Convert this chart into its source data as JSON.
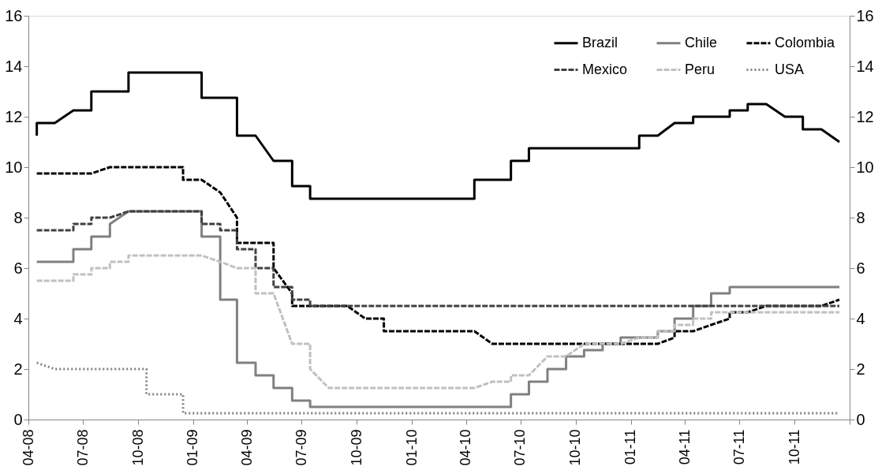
{
  "chart_data": {
    "type": "line",
    "xlim": [
      "2008-04-01",
      "2012-01-01"
    ],
    "xticks": [
      {
        "value": "2008-04-01",
        "label": "04-08"
      },
      {
        "value": "2008-07-01",
        "label": "07-08"
      },
      {
        "value": "2008-10-01",
        "label": "10-08"
      },
      {
        "value": "2009-01-01",
        "label": "01-09"
      },
      {
        "value": "2009-04-01",
        "label": "04-09"
      },
      {
        "value": "2009-07-01",
        "label": "07-09"
      },
      {
        "value": "2009-10-01",
        "label": "10-09"
      },
      {
        "value": "2010-01-01",
        "label": "01-10"
      },
      {
        "value": "2010-04-01",
        "label": "04-10"
      },
      {
        "value": "2010-07-01",
        "label": "07-10"
      },
      {
        "value": "2010-10-01",
        "label": "10-10"
      },
      {
        "value": "2011-01-01",
        "label": "01-11"
      },
      {
        "value": "2011-04-01",
        "label": "04-11"
      },
      {
        "value": "2011-07-01",
        "label": "07-11"
      },
      {
        "value": "2011-10-01",
        "label": "10-11"
      },
      {
        "value": "2012-01-01",
        "label": null
      }
    ],
    "ylim": [
      0,
      16
    ],
    "yticks": [
      0,
      2,
      4,
      6,
      8,
      10,
      12,
      14,
      16
    ],
    "y2lim": [
      0,
      16
    ],
    "y2ticks": [
      0,
      2,
      4,
      6,
      8,
      10,
      12,
      14,
      16
    ],
    "grid": false,
    "legend": "top right",
    "series": [
      {
        "name": "Brazil",
        "color": "#000000",
        "line_style": "solid",
        "x": [
          "2008-04-15",
          "2008-04-15",
          "2008-05-15",
          "2008-06-15",
          "2008-07-15",
          "2008-07-15",
          "2008-09-15",
          "2008-09-15",
          "2009-01-15",
          "2009-01-15",
          "2009-03-15",
          "2009-03-15",
          "2009-04-15",
          "2009-05-15",
          "2009-06-15",
          "2009-06-15",
          "2009-07-15",
          "2009-07-15",
          "2010-04-15",
          "2010-04-15",
          "2010-06-15",
          "2010-06-15",
          "2010-07-15",
          "2010-07-15",
          "2011-01-15",
          "2011-01-15",
          "2011-02-15",
          "2011-03-15",
          "2011-04-15",
          "2011-04-15",
          "2011-06-15",
          "2011-06-15",
          "2011-07-15",
          "2011-07-15",
          "2011-08-15",
          "2011-09-15",
          "2011-10-15",
          "2011-10-15",
          "2011-11-15",
          "2011-12-15"
        ],
        "values": [
          11.25,
          11.75,
          11.75,
          12.25,
          12.25,
          13.0,
          13.0,
          13.75,
          13.75,
          12.75,
          12.75,
          11.25,
          11.25,
          10.25,
          10.25,
          9.25,
          9.25,
          8.75,
          8.75,
          9.5,
          9.5,
          10.25,
          10.25,
          10.75,
          10.75,
          11.25,
          11.25,
          11.75,
          11.75,
          12.0,
          12.0,
          12.25,
          12.25,
          12.5,
          12.5,
          12.0,
          12.0,
          11.5,
          11.5,
          11.0
        ]
      },
      {
        "name": "Chile",
        "color": "#808080",
        "line_style": "solid",
        "x": [
          "2008-04-15",
          "2008-06-15",
          "2008-06-15",
          "2008-07-15",
          "2008-07-15",
          "2008-08-15",
          "2008-08-15",
          "2008-09-15",
          "2009-01-15",
          "2009-01-15",
          "2009-02-15",
          "2009-02-15",
          "2009-03-15",
          "2009-03-15",
          "2009-04-15",
          "2009-04-15",
          "2009-05-15",
          "2009-05-15",
          "2009-06-15",
          "2009-06-15",
          "2009-07-15",
          "2009-07-15",
          "2010-06-15",
          "2010-06-15",
          "2010-07-15",
          "2010-07-15",
          "2010-08-15",
          "2010-08-15",
          "2010-09-15",
          "2010-09-15",
          "2010-10-15",
          "2010-10-15",
          "2010-11-15",
          "2010-11-15",
          "2010-12-15",
          "2010-12-15",
          "2011-02-15",
          "2011-02-15",
          "2011-03-15",
          "2011-03-15",
          "2011-04-15",
          "2011-04-15",
          "2011-05-15",
          "2011-05-15",
          "2011-06-15",
          "2011-06-15",
          "2011-12-15"
        ],
        "values": [
          6.25,
          6.25,
          6.75,
          6.75,
          7.25,
          7.25,
          7.75,
          8.25,
          8.25,
          7.25,
          7.25,
          4.75,
          4.75,
          2.25,
          2.25,
          1.75,
          1.75,
          1.25,
          1.25,
          0.75,
          0.75,
          0.5,
          0.5,
          1.0,
          1.0,
          1.5,
          1.5,
          2.0,
          2.0,
          2.5,
          2.5,
          2.75,
          2.75,
          3.0,
          3.0,
          3.25,
          3.25,
          3.5,
          3.5,
          4.0,
          4.0,
          4.5,
          4.5,
          5.0,
          5.0,
          5.25,
          5.25
        ]
      },
      {
        "name": "Colombia",
        "color": "#000000",
        "line_style": "dashed",
        "x": [
          "2008-04-15",
          "2008-07-15",
          "2008-08-15",
          "2008-12-15",
          "2008-12-15",
          "2009-01-15",
          "2009-02-15",
          "2009-03-15",
          "2009-03-15",
          "2009-05-15",
          "2009-05-15",
          "2009-06-15",
          "2009-06-15",
          "2009-09-15",
          "2009-10-15",
          "2009-11-15",
          "2009-11-15",
          "2010-04-15",
          "2010-05-15",
          "2011-02-15",
          "2011-03-15",
          "2011-03-15",
          "2011-04-15",
          "2011-05-15",
          "2011-06-15",
          "2011-06-15",
          "2011-07-15",
          "2011-08-15",
          "2011-11-15",
          "2011-12-15"
        ],
        "values": [
          9.75,
          9.75,
          10.0,
          10.0,
          9.5,
          9.5,
          9.0,
          8.0,
          7.0,
          7.0,
          6.0,
          5.0,
          4.5,
          4.5,
          4.0,
          4.0,
          3.5,
          3.5,
          3.0,
          3.0,
          3.25,
          3.5,
          3.5,
          3.75,
          4.0,
          4.25,
          4.25,
          4.5,
          4.5,
          4.75
        ]
      },
      {
        "name": "Mexico",
        "color": "#404040",
        "line_style": "dashed",
        "x": [
          "2008-04-15",
          "2008-06-15",
          "2008-06-15",
          "2008-07-15",
          "2008-07-15",
          "2008-08-15",
          "2008-09-15",
          "2009-01-15",
          "2009-01-15",
          "2009-02-15",
          "2009-02-15",
          "2009-03-15",
          "2009-03-15",
          "2009-04-15",
          "2009-04-15",
          "2009-05-15",
          "2009-05-15",
          "2009-06-15",
          "2009-06-15",
          "2009-07-15",
          "2009-07-15",
          "2011-12-15"
        ],
        "values": [
          7.5,
          7.5,
          7.75,
          7.75,
          8.0,
          8.0,
          8.25,
          8.25,
          7.75,
          7.75,
          7.5,
          7.5,
          6.75,
          6.75,
          6.0,
          6.0,
          5.25,
          5.25,
          4.75,
          4.75,
          4.5,
          4.5
        ]
      },
      {
        "name": "Peru",
        "color": "#c0c0c0",
        "line_style": "dashed",
        "x": [
          "2008-04-15",
          "2008-06-15",
          "2008-06-15",
          "2008-07-15",
          "2008-07-15",
          "2008-08-15",
          "2008-08-15",
          "2008-09-15",
          "2008-09-15",
          "2009-01-15",
          "2009-02-15",
          "2009-03-15",
          "2009-04-15",
          "2009-04-15",
          "2009-05-15",
          "2009-06-15",
          "2009-07-15",
          "2009-07-15",
          "2009-08-15",
          "2010-04-15",
          "2010-05-15",
          "2010-06-15",
          "2010-06-15",
          "2010-07-15",
          "2010-08-15",
          "2010-09-15",
          "2010-10-15",
          "2010-12-15",
          "2011-01-15",
          "2011-02-15",
          "2011-02-15",
          "2011-03-15",
          "2011-03-15",
          "2011-04-15",
          "2011-04-15",
          "2011-05-15",
          "2011-05-15",
          "2011-12-15"
        ],
        "values": [
          5.5,
          5.5,
          5.75,
          5.75,
          6.0,
          6.0,
          6.25,
          6.25,
          6.5,
          6.5,
          6.25,
          6.0,
          6.0,
          5.0,
          5.0,
          3.0,
          3.0,
          2.0,
          1.25,
          1.25,
          1.5,
          1.5,
          1.75,
          1.75,
          2.5,
          2.5,
          3.0,
          3.0,
          3.25,
          3.25,
          3.5,
          3.5,
          3.75,
          3.75,
          4.0,
          4.0,
          4.25,
          4.25
        ]
      },
      {
        "name": "USA",
        "color": "#808080",
        "line_style": "dotted",
        "x": [
          "2008-04-15",
          "2008-05-15",
          "2008-10-15",
          "2008-10-15",
          "2008-12-15",
          "2008-12-15",
          "2011-12-15"
        ],
        "values": [
          2.25,
          2.0,
          2.0,
          1.0,
          1.0,
          0.25,
          0.25
        ]
      }
    ]
  }
}
